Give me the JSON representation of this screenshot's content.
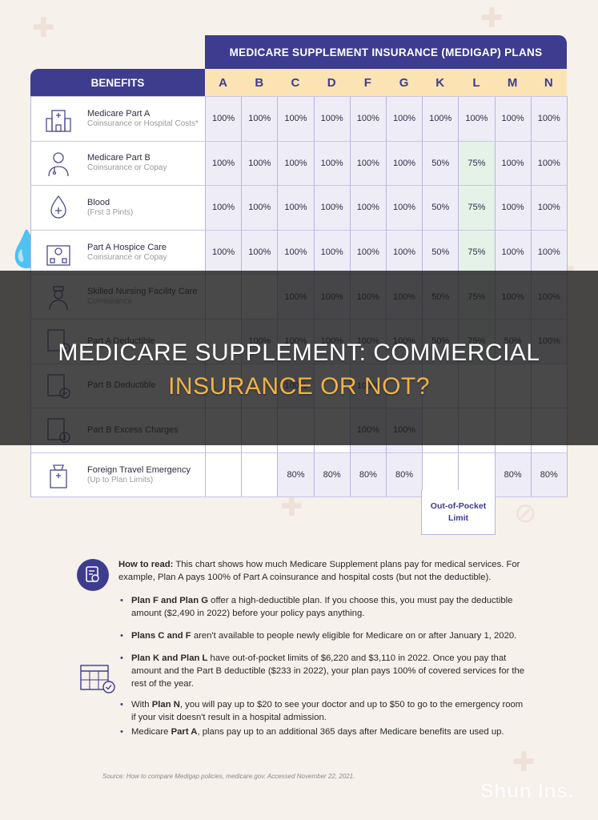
{
  "header": {
    "plans_title": "MEDICARE SUPPLEMENT INSURANCE (MEDIGAP) PLANS",
    "benefits_label": "BENEFITS",
    "plans": [
      "A",
      "B",
      "C",
      "D",
      "F",
      "G",
      "K",
      "L",
      "M",
      "N"
    ]
  },
  "rows": [
    {
      "name": "Medicare Part A",
      "sub": "Coinsurance or Hospital Costs*",
      "icon": "hospital-icon",
      "values": [
        "100%",
        "100%",
        "100%",
        "100%",
        "100%",
        "100%",
        "100%",
        "100%",
        "100%",
        "100%"
      ]
    },
    {
      "name": "Medicare Part B",
      "sub": "Coinsurance or Copay",
      "icon": "doctor-icon",
      "values": [
        "100%",
        "100%",
        "100%",
        "100%",
        "100%",
        "100%",
        "50%",
        "75%",
        "100%",
        "100%"
      ]
    },
    {
      "name": "Blood",
      "sub": "(Frst 3 Pints)",
      "icon": "blood-drop-icon",
      "values": [
        "100%",
        "100%",
        "100%",
        "100%",
        "100%",
        "100%",
        "50%",
        "75%",
        "100%",
        "100%"
      ]
    },
    {
      "name": "Part A Hospice Care",
      "sub": "Coinsurance or Copay",
      "icon": "hospice-icon",
      "values": [
        "100%",
        "100%",
        "100%",
        "100%",
        "100%",
        "100%",
        "50%",
        "75%",
        "100%",
        "100%"
      ]
    },
    {
      "name": "Skilled Nursing Facility Care",
      "sub": "Coinsurance",
      "icon": "nurse-icon",
      "values": [
        "",
        "",
        "100%",
        "100%",
        "100%",
        "100%",
        "50%",
        "75%",
        "100%",
        "100%"
      ]
    },
    {
      "name": "Part A Deductible",
      "sub": "",
      "icon": "minus-card-icon",
      "values": [
        "",
        "100%",
        "100%",
        "100%",
        "100%",
        "100%",
        "50%",
        "75%",
        "50%",
        "100%"
      ]
    },
    {
      "name": "Part B Deductible",
      "sub": "",
      "icon": "minus-card-icon",
      "values": [
        "",
        "",
        "100%",
        "",
        "100%",
        "",
        "",
        "",
        "",
        ""
      ]
    },
    {
      "name": "Part B Excess Charges",
      "sub": "",
      "icon": "dollar-card-icon",
      "values": [
        "",
        "",
        "",
        "",
        "100%",
        "100%",
        "",
        "",
        "",
        ""
      ]
    },
    {
      "name": "Foreign Travel Emergency",
      "sub": "(Up to Plan Limits)",
      "icon": "plane-hospital-icon",
      "values": [
        "",
        "",
        "80%",
        "80%",
        "80%",
        "80%",
        "",
        "",
        "80%",
        "80%"
      ]
    }
  ],
  "oop_limit": "Out-of-Pocket Limit",
  "title_line1": "MEDICARE SUPPLEMENT: COMMERCIAL",
  "title_line2": "INSURANCE OR NOT?",
  "how_to_read": {
    "label": "How to read:",
    "text": "This chart shows how much Medicare Supplement plans pay for medical services. For example, Plan A pays 100% of Part A coinsurance and hospital costs (but not the deductible)."
  },
  "bullets": [
    {
      "bold": "Plan F and Plan G",
      "text": " offer a high-deductible plan. If you choose this, you must pay the deductible amount ($2,490 in 2022) before your policy pays anything."
    },
    {
      "bold": "Plans C and F",
      "text": " aren't available to people newly eligible for Medicare on or after January 1, 2020."
    },
    {
      "bold": "Plan K and Plan L",
      "text": " have out-of-pocket limits of $6,220 and $3,110 in 2022. Once you pay that amount and the Part B deductible ($233 in 2022), your plan pays 100% of covered services for the rest of the year."
    },
    {
      "bold": "",
      "text": "With ",
      "bold2": "Plan N",
      "text2": ", you will pay up to $20 to see your doctor and up to $50 to go to the emergency room if your visit doesn't result in a hospital admission."
    },
    {
      "bold": "",
      "text": "Medicare ",
      "bold2": "Part A",
      "text2": ", plans pay up to an additional 365 days after Medicare benefits are used up."
    }
  ],
  "source": "Source: How to compare Medigap policies, medicare.gov. Accessed November 22, 2021.",
  "watermark": "Shun Ins."
}
